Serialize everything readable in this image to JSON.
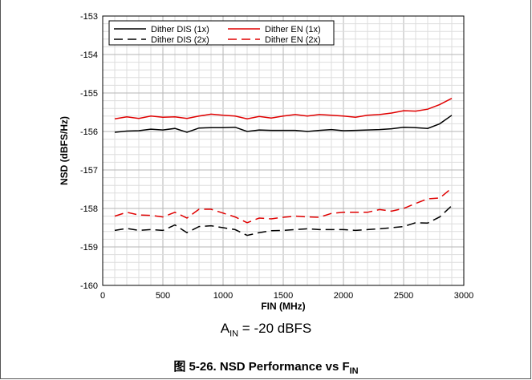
{
  "chart_data": {
    "type": "line",
    "xlabel": "FIN (MHz)",
    "ylabel": "NSD (dBFS/Hz)",
    "xlim": [
      0,
      3000
    ],
    "ylim": [
      -160,
      -153
    ],
    "xticks": [
      0,
      500,
      1000,
      1500,
      2000,
      2500,
      3000
    ],
    "yticks": [
      -160,
      -159,
      -158,
      -157,
      -156,
      -155,
      -154,
      -153
    ],
    "grid": true,
    "legend_position": "top-left",
    "series": [
      {
        "name": "Dither DIS (1x)",
        "color": "#000000",
        "dash": "solid",
        "x": [
          100,
          200,
          300,
          400,
          500,
          600,
          700,
          800,
          900,
          1000,
          1100,
          1200,
          1300,
          1400,
          1500,
          1600,
          1700,
          1800,
          1900,
          2000,
          2100,
          2200,
          2300,
          2400,
          2500,
          2600,
          2700,
          2800,
          2900
        ],
        "values": [
          -156.02,
          -155.99,
          -155.98,
          -155.94,
          -155.96,
          -155.92,
          -156.02,
          -155.91,
          -155.9,
          -155.9,
          -155.89,
          -156.0,
          -155.96,
          -155.97,
          -155.97,
          -155.97,
          -156.0,
          -155.97,
          -155.95,
          -155.98,
          -155.97,
          -155.96,
          -155.95,
          -155.93,
          -155.89,
          -155.9,
          -155.92,
          -155.8,
          -155.58
        ]
      },
      {
        "name": "Dither EN (1x)",
        "color": "#e00000",
        "dash": "solid",
        "x": [
          100,
          200,
          300,
          400,
          500,
          600,
          700,
          800,
          900,
          1000,
          1100,
          1200,
          1300,
          1400,
          1500,
          1600,
          1700,
          1800,
          1900,
          2000,
          2100,
          2200,
          2300,
          2400,
          2500,
          2600,
          2700,
          2800,
          2900
        ],
        "values": [
          -155.67,
          -155.62,
          -155.66,
          -155.6,
          -155.63,
          -155.62,
          -155.66,
          -155.6,
          -155.55,
          -155.58,
          -155.6,
          -155.67,
          -155.61,
          -155.65,
          -155.6,
          -155.56,
          -155.6,
          -155.56,
          -155.58,
          -155.6,
          -155.63,
          -155.58,
          -155.56,
          -155.52,
          -155.46,
          -155.47,
          -155.42,
          -155.3,
          -155.14
        ]
      },
      {
        "name": "Dither DIS (2x)",
        "color": "#000000",
        "dash": "dashed",
        "x": [
          100,
          200,
          300,
          400,
          500,
          600,
          700,
          800,
          900,
          1000,
          1100,
          1200,
          1300,
          1400,
          1500,
          1600,
          1700,
          1800,
          1900,
          2000,
          2100,
          2200,
          2300,
          2400,
          2500,
          2600,
          2700,
          2800,
          2900
        ],
        "values": [
          -158.57,
          -158.52,
          -158.57,
          -158.55,
          -158.57,
          -158.43,
          -158.63,
          -158.47,
          -158.45,
          -158.5,
          -158.55,
          -158.7,
          -158.63,
          -158.58,
          -158.57,
          -158.55,
          -158.53,
          -158.55,
          -158.55,
          -158.55,
          -158.57,
          -158.55,
          -158.53,
          -158.5,
          -158.47,
          -158.37,
          -158.38,
          -158.22,
          -157.93
        ]
      },
      {
        "name": "Dither EN (2x)",
        "color": "#e00000",
        "dash": "dashed",
        "x": [
          100,
          200,
          300,
          400,
          500,
          600,
          700,
          800,
          900,
          1000,
          1100,
          1200,
          1300,
          1400,
          1500,
          1600,
          1700,
          1800,
          1900,
          2000,
          2100,
          2200,
          2300,
          2400,
          2500,
          2600,
          2700,
          2800,
          2900
        ],
        "values": [
          -158.2,
          -158.1,
          -158.17,
          -158.18,
          -158.22,
          -158.1,
          -158.25,
          -158.02,
          -158.02,
          -158.12,
          -158.22,
          -158.37,
          -158.25,
          -158.27,
          -158.23,
          -158.2,
          -158.22,
          -158.23,
          -158.13,
          -158.1,
          -158.1,
          -158.1,
          -158.03,
          -158.07,
          -158.0,
          -157.87,
          -157.75,
          -157.73,
          -157.47
        ]
      }
    ]
  },
  "condition": {
    "prefix": "A",
    "sub": "IN",
    "suffix": " = -20 dBFS"
  },
  "caption": {
    "prefix": "图 5-26. NSD Performance vs F",
    "sub": "IN"
  }
}
